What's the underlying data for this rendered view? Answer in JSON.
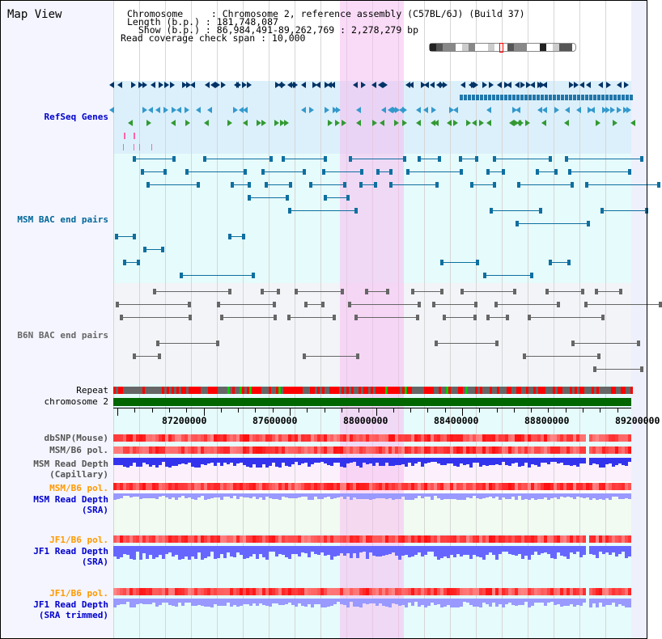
{
  "title": "Map View",
  "header": {
    "chromosome": "Chromosome     : Chromosome 2, reference assembly (C57BL/6J) (Build 37)",
    "length": "Length (b.p.) : 181,748,087",
    "show": "  Show (b.p.) : 86,984,491-89,262,769 : 2,278,279 bp",
    "span": "Read coverage check span : 10,000"
  },
  "range": {
    "start": 86984491,
    "end": 89262769
  },
  "tracks": [
    {
      "label": "RefSeq Genes",
      "color": "#0000cc"
    },
    {
      "label": "MSM BAC end pairs",
      "color": "#006699"
    },
    {
      "label": "B6N BAC end pairs",
      "color": "#666666"
    },
    {
      "label": "Repeat",
      "color": "#000000"
    },
    {
      "label": "chromosome 2",
      "color": "#000000"
    },
    {
      "label": "dbSNP(Mouse)",
      "color": "#555555"
    },
    {
      "label": "MSM/B6 pol.",
      "color": "#555555"
    },
    {
      "label": "MSM Read Depth\n(Capillary)",
      "color": "#555555"
    },
    {
      "label": "MSM/B6 pol.",
      "color": "#ff9900"
    },
    {
      "label": "MSM Read Depth\n(SRA)",
      "color": "#0000cc"
    },
    {
      "label": "JF1/B6 pol.",
      "color": "#ff9900"
    },
    {
      "label": "JF1 Read Depth\n(SRA)",
      "color": "#0000cc"
    },
    {
      "label": "JF1/B6 pol.",
      "color": "#ff9900"
    },
    {
      "label": "JF1 Read Depth\n(SRA trimmed)",
      "color": "#0000cc"
    }
  ],
  "axis": {
    "ticks": [
      "87200000",
      "87600000",
      "88000000",
      "88400000",
      "88800000",
      "89200000"
    ]
  },
  "colors": {
    "highlight": "#f7c8f0",
    "chrom": "#006600",
    "gene_dark": "#003366",
    "gene_blue": "#3399cc",
    "gene_green": "#339933"
  }
}
